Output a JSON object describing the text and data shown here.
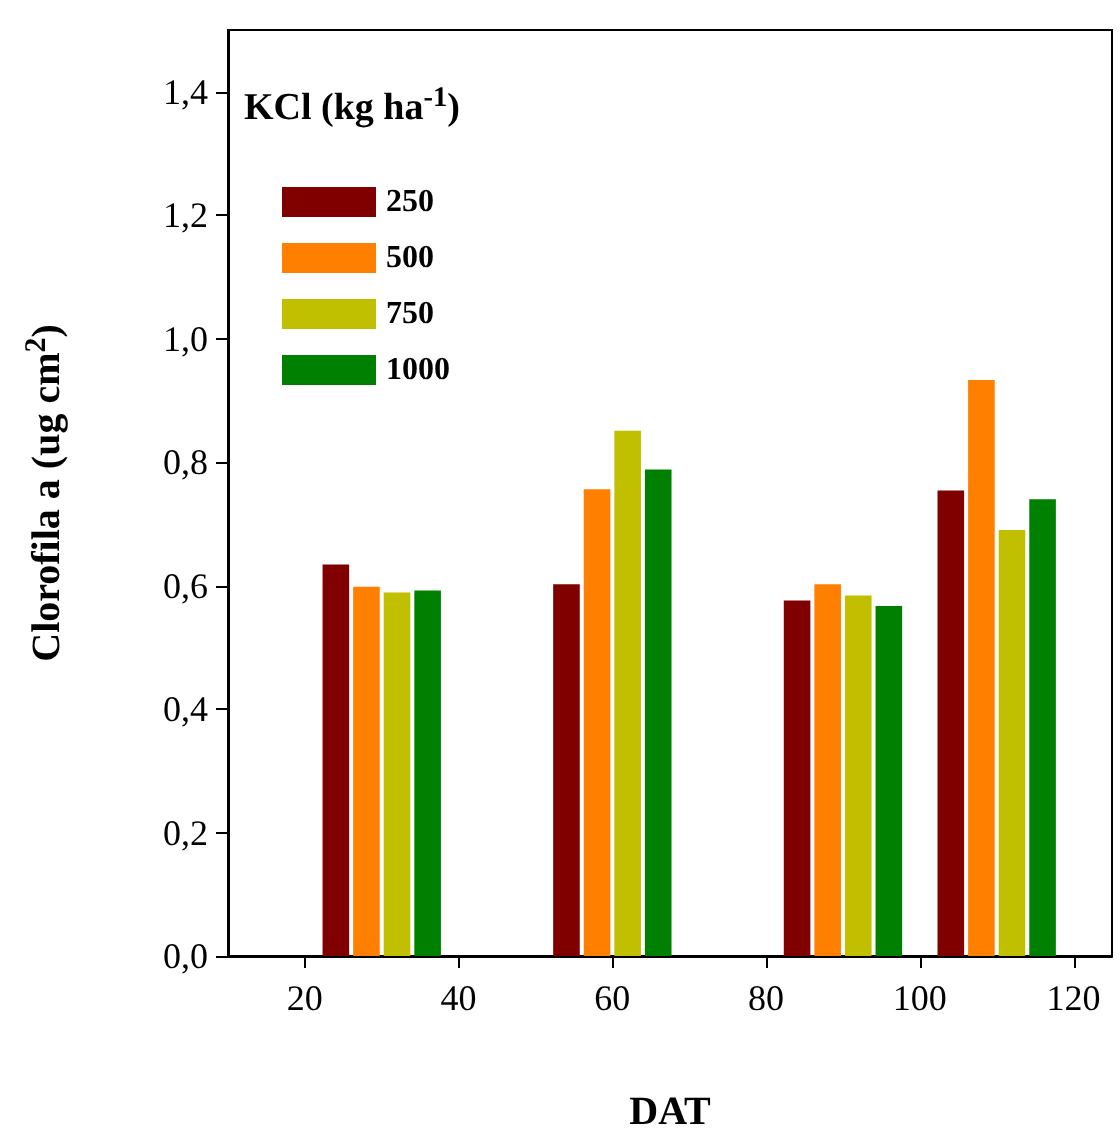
{
  "chart_data": {
    "type": "bar",
    "xlabel": "DAT",
    "ylabel": "Clorofila a (ug cm$^{2}$)",
    "legend_title": "KCl (kg ha$^{-1}$)",
    "x": [
      30,
      60,
      90,
      110
    ],
    "series": [
      {
        "name": "250",
        "color": "#800000",
        "values": [
          0.634,
          0.602,
          0.576,
          0.754
        ]
      },
      {
        "name": "500",
        "color": "#ff8000",
        "values": [
          0.598,
          0.756,
          0.602,
          0.933
        ]
      },
      {
        "name": "750",
        "color": "#c0c000",
        "values": [
          0.589,
          0.851,
          0.584,
          0.69
        ]
      },
      {
        "name": "1000",
        "color": "#008000",
        "values": [
          0.592,
          0.788,
          0.567,
          0.74
        ]
      }
    ],
    "xlim": [
      10,
      125
    ],
    "xticks": [
      20,
      40,
      60,
      80,
      100,
      120
    ],
    "ylim": [
      0,
      1.5
    ],
    "yticks": [
      {
        "value": 0,
        "label": "0,0"
      },
      {
        "value": 0.2,
        "label": "0,2"
      },
      {
        "value": 0.4,
        "label": "0,4"
      },
      {
        "value": 0.6,
        "label": "0,6"
      },
      {
        "value": 0.8,
        "label": "0,8"
      },
      {
        "value": 1.0,
        "label": "1,0"
      },
      {
        "value": 1.2,
        "label": "1,2"
      },
      {
        "value": 1.4,
        "label": "1,4"
      }
    ],
    "grid": false,
    "legend": "top left"
  }
}
